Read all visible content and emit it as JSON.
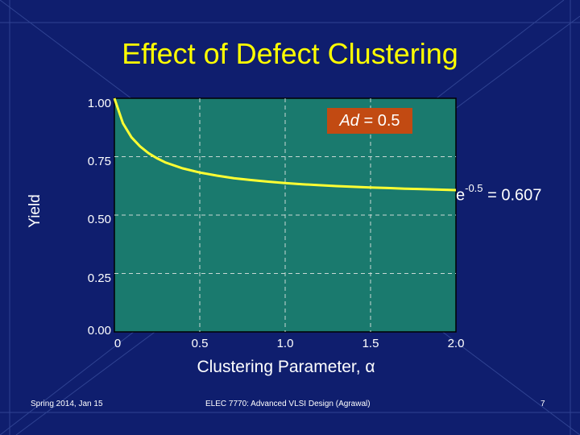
{
  "slide": {
    "title": "Effect of Defect Clustering",
    "footer_left": "Spring 2014, Jan 15",
    "footer_center": "ELEC 7770: Advanced VLSI Design (Agrawal)",
    "footer_right": "7"
  },
  "colors": {
    "background": "#0f1e6e",
    "title": "#ffff00",
    "plot_area": "#1a7a6e",
    "curve": "#ffff33",
    "annotation_box": "#c24a12"
  },
  "chart_data": {
    "type": "line",
    "title": "Effect of Defect Clustering",
    "xlabel": "Clustering Parameter, α",
    "ylabel": "Yield",
    "xlim": [
      0,
      2.0
    ],
    "ylim": [
      0,
      1.0
    ],
    "x_ticks": [
      "0",
      "0.5",
      "1.0",
      "1.5",
      "2.0"
    ],
    "y_ticks": [
      "0.00",
      "0.25",
      "0.50",
      "0.75",
      "1.00"
    ],
    "grid": true,
    "series": [
      {
        "x": [
          0,
          0.05,
          0.1,
          0.15,
          0.2,
          0.25,
          0.3,
          0.4,
          0.5,
          0.6,
          0.7,
          0.8,
          0.9,
          1.0,
          1.1,
          1.2,
          1.3,
          1.4,
          1.5,
          1.6,
          1.7,
          1.8,
          1.9,
          2.0
        ],
        "y": [
          1.0,
          0.893,
          0.833,
          0.794,
          0.765,
          0.743,
          0.725,
          0.7,
          0.682,
          0.669,
          0.658,
          0.65,
          0.643,
          0.637,
          0.632,
          0.628,
          0.624,
          0.621,
          0.618,
          0.616,
          0.613,
          0.611,
          0.609,
          0.607
        ]
      }
    ],
    "annotations": {
      "box_prefix": "Ad",
      "box_suffix": " = 0.5",
      "asymptote_base": "e",
      "asymptote_exponent": "-0.5",
      "asymptote_value": " = 0.607"
    }
  }
}
